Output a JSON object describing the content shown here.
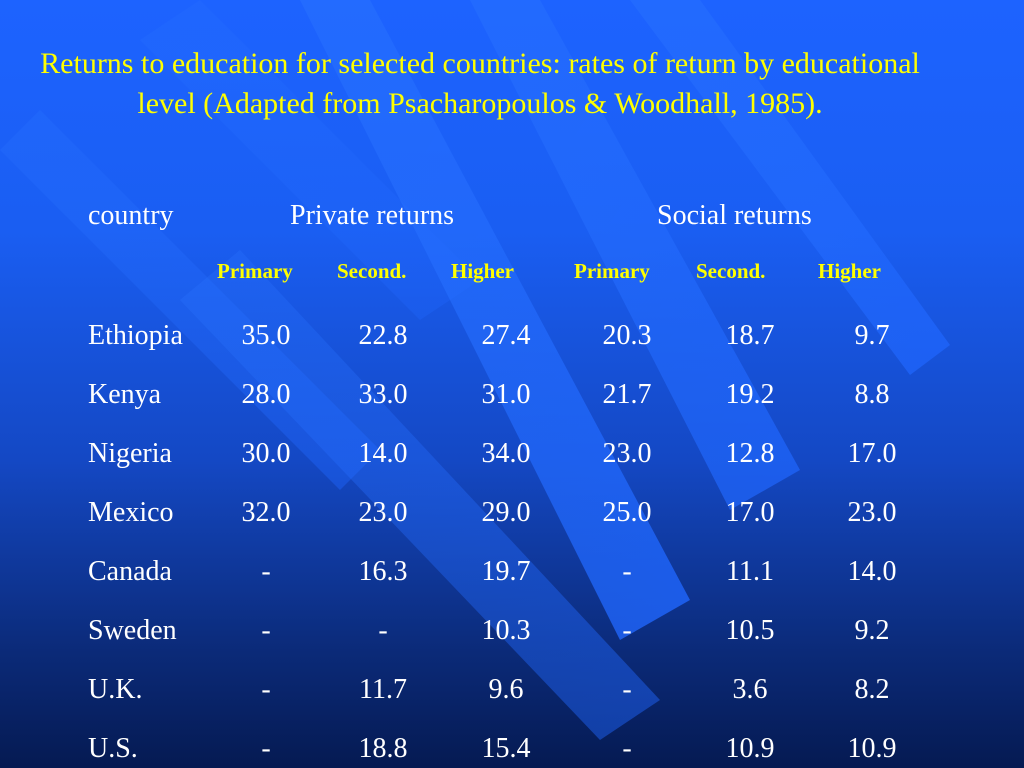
{
  "title": "Returns to education for selected countries: rates of return by educational level (Adapted from Psacharopoulos & Woodhall, 1985).",
  "header": {
    "country": "country",
    "private": "Private returns",
    "social": "Social returns",
    "subheaders": [
      "Primary",
      "Second.",
      "Higher",
      "Primary",
      "Second.",
      "Higher"
    ]
  },
  "rows": [
    {
      "country": "Ethiopia",
      "values": [
        "35.0",
        "22.8",
        "27.4",
        "20.3",
        "18.7",
        "9.7"
      ]
    },
    {
      "country": "Kenya",
      "values": [
        "28.0",
        "33.0",
        "31.0",
        "21.7",
        "19.2",
        "8.8"
      ]
    },
    {
      "country": "Nigeria",
      "values": [
        "30.0",
        "14.0",
        "34.0",
        "23.0",
        "12.8",
        "17.0"
      ]
    },
    {
      "country": "Mexico",
      "values": [
        "32.0",
        "23.0",
        "29.0",
        "25.0",
        "17.0",
        "23.0"
      ]
    },
    {
      "country": "Canada",
      "values": [
        "-",
        "16.3",
        "19.7",
        "-",
        "11.1",
        "14.0"
      ]
    },
    {
      "country": "Sweden",
      "values": [
        "-",
        "-",
        "10.3",
        "-",
        "10.5",
        "9.2"
      ]
    },
    {
      "country": "U.K.",
      "values": [
        "-",
        "11.7",
        "9.6",
        "-",
        "3.6",
        "8.2"
      ]
    },
    {
      "country": "U.S.",
      "values": [
        "-",
        "18.8",
        "15.4",
        "-",
        "10.9",
        "10.9"
      ]
    }
  ],
  "colors": {
    "title": "#ffff00",
    "text": "#ffffff",
    "subheader": "#ffff00",
    "stripe": "#1f6bff"
  }
}
